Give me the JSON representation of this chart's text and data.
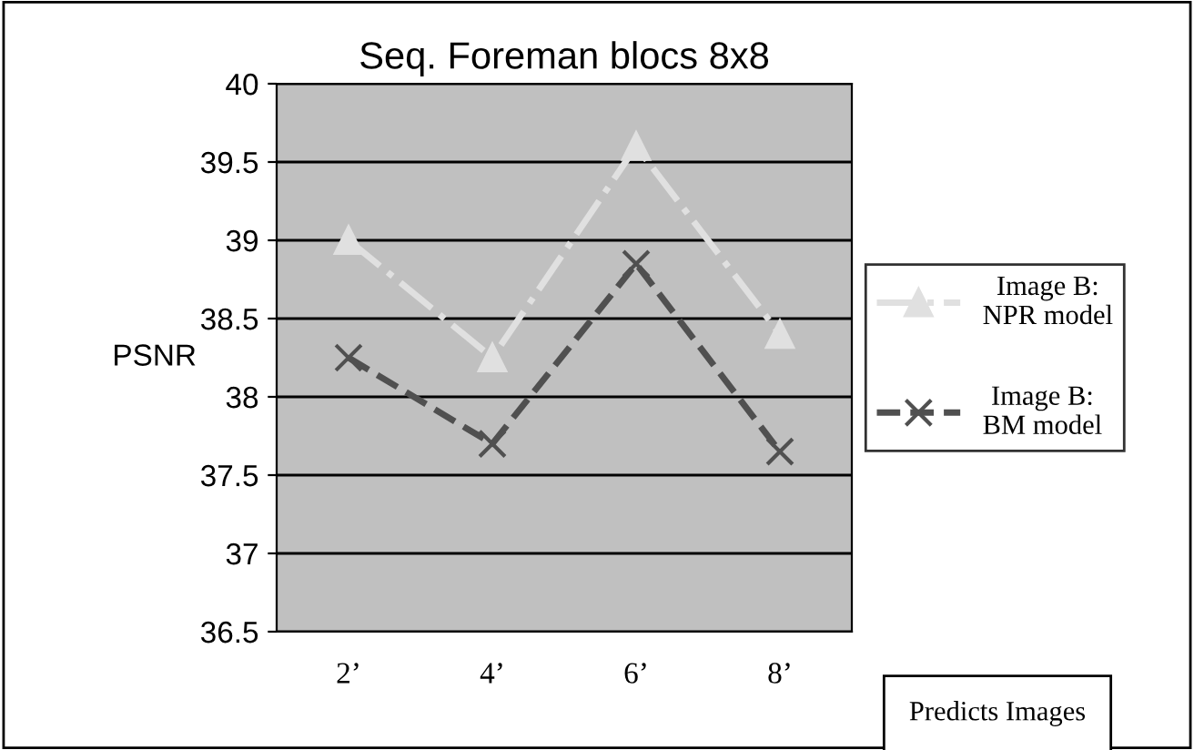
{
  "chart_data": {
    "type": "line",
    "title": "Seq. Foreman blocs 8x8",
    "ylabel": "PSNR",
    "xlabel": "Predicts Images",
    "categories": [
      "2’",
      "4’",
      "6’",
      "8’"
    ],
    "series": [
      {
        "name": "Image B: NPR model",
        "color": "#e0e0e0",
        "values": [
          39.0,
          38.25,
          39.6,
          38.4
        ],
        "marker": "triangle",
        "line_style": "dashdot"
      },
      {
        "name": "Image B: BM model",
        "color": "#505050",
        "values": [
          38.25,
          37.7,
          38.85,
          37.65
        ],
        "marker": "cross",
        "line_style": "dashed"
      }
    ],
    "ylim": [
      36.5,
      40
    ],
    "yticks": [
      36.5,
      37,
      37.5,
      38,
      38.5,
      39,
      39.5,
      40
    ],
    "grid": "y",
    "legend": "right"
  }
}
